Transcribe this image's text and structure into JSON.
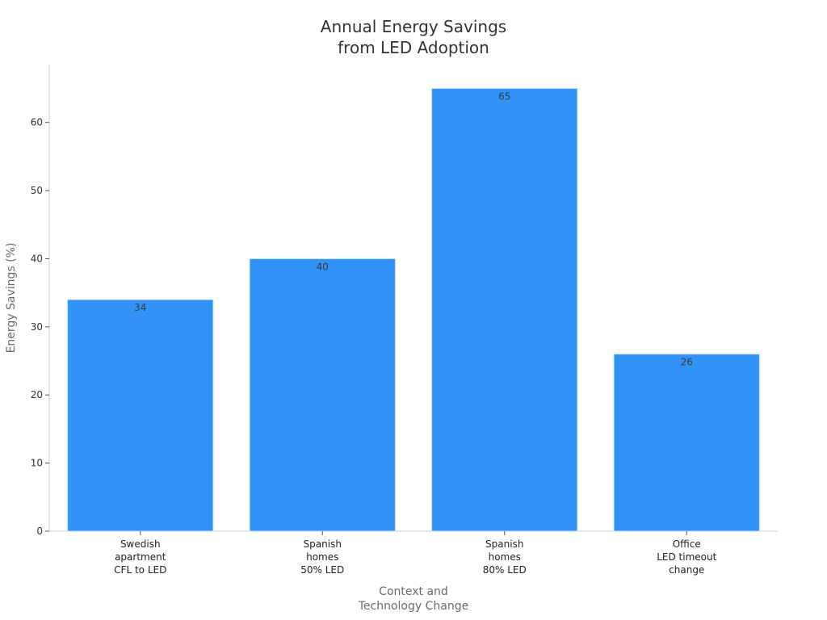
{
  "chart_data": {
    "type": "bar",
    "title": [
      "Annual Energy Savings",
      "from LED Adoption"
    ],
    "xlabel": [
      "Context and",
      "Technology Change"
    ],
    "ylabel": "Energy Savings (%)",
    "categories": [
      [
        "Swedish",
        "apartment",
        "CFL to LED"
      ],
      [
        "Spanish",
        "homes",
        "50% LED"
      ],
      [
        "Spanish",
        "homes",
        "80% LED"
      ],
      [
        "Office",
        "LED timeout",
        "change"
      ]
    ],
    "values": [
      34,
      40,
      65,
      26
    ],
    "data_labels": [
      "34",
      "40",
      "65",
      "26"
    ],
    "ylim": [
      0,
      68.5
    ],
    "yticks": [
      0,
      10,
      20,
      30,
      40,
      50,
      60
    ],
    "grid": false,
    "bar_color": "#3192f7",
    "bar_edge_color": "#cfe3fb"
  }
}
